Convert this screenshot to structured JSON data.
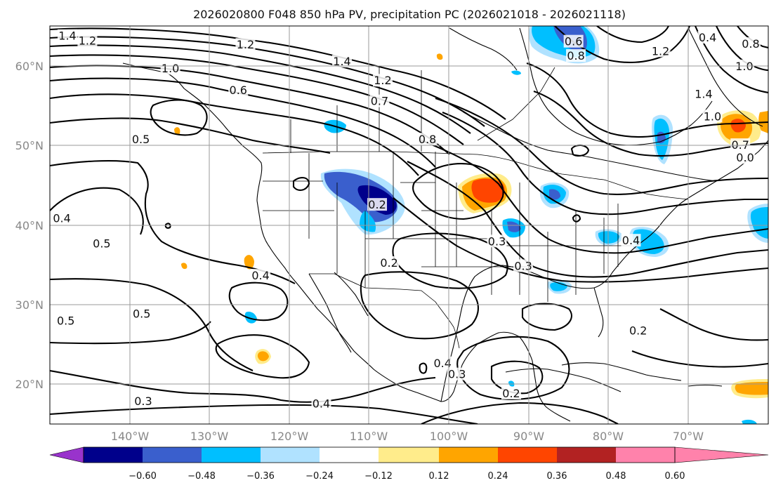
{
  "figure": {
    "title": "2026020800 F048 850 hPa PV, precipitation PC (2026021018 - 2026021118)"
  },
  "map": {
    "lon_range": [
      -150,
      -60
    ],
    "lat_range": [
      15,
      65
    ],
    "lat_labels": [
      "60°N",
      "50°N",
      "40°N",
      "30°N",
      "20°N"
    ],
    "lon_labels": [
      "140°W",
      "130°W",
      "120°W",
      "110°W",
      "100°W",
      "90°W",
      "80°W",
      "70°W"
    ]
  },
  "colorbar": {
    "ticks": [
      "−0.60",
      "−0.48",
      "−0.36",
      "−0.24",
      "−0.12",
      "0.12",
      "0.24",
      "0.36",
      "0.48",
      "0.60"
    ],
    "colors": [
      "#9933cc",
      "#00008b",
      "#3a5fcd",
      "#00bfff",
      "#b0e2ff",
      "#ffffff",
      "#ffec8b",
      "#ffa500",
      "#ff4500",
      "#b22222",
      "#ff82ab"
    ]
  },
  "chart_data": {
    "type": "contour-map",
    "title": "2026020800 F048 850 hPa PV, precipitation PC (2026021018 - 2026021118)",
    "contour_field": "850 hPa PV",
    "shaded_field": "precipitation PC",
    "contour_labels": [
      {
        "text": "1.4",
        "lon": -147.8,
        "lat": 63.7
      },
      {
        "text": "1.2",
        "lon": -145.3,
        "lat": 63.1
      },
      {
        "text": "1.2",
        "lon": -125.5,
        "lat": 62.6
      },
      {
        "text": "1.0",
        "lon": -134.9,
        "lat": 59.6
      },
      {
        "text": "0.6",
        "lon": -126.4,
        "lat": 56.9
      },
      {
        "text": "1.4",
        "lon": -113.4,
        "lat": 60.5
      },
      {
        "text": "1.2",
        "lon": -108.3,
        "lat": 58.1
      },
      {
        "text": "0.7",
        "lon": -108.7,
        "lat": 55.5
      },
      {
        "text": "0.8",
        "lon": -102.7,
        "lat": 50.7
      },
      {
        "text": "0.5",
        "lon": -138.6,
        "lat": 50.7
      },
      {
        "text": "0.4",
        "lon": -148.5,
        "lat": 40.8
      },
      {
        "text": "0.5",
        "lon": -143.5,
        "lat": 37.6
      },
      {
        "text": "0.4",
        "lon": -123.6,
        "lat": 33.6
      },
      {
        "text": "0.2",
        "lon": -107.5,
        "lat": 35.2
      },
      {
        "text": "0.2",
        "lon": -109.0,
        "lat": 42.5
      },
      {
        "text": "0.5",
        "lon": -138.5,
        "lat": 28.8
      },
      {
        "text": "0.5",
        "lon": -148.0,
        "lat": 27.9
      },
      {
        "text": "0.3",
        "lon": -138.3,
        "lat": 17.8
      },
      {
        "text": "0.4",
        "lon": -116.0,
        "lat": 17.5
      },
      {
        "text": "0.4",
        "lon": -100.8,
        "lat": 22.6
      },
      {
        "text": "0.3",
        "lon": -99.0,
        "lat": 21.2
      },
      {
        "text": "0.2",
        "lon": -92.2,
        "lat": 18.8
      },
      {
        "text": "0.3",
        "lon": -90.7,
        "lat": 34.8
      },
      {
        "text": "0.3",
        "lon": -94.0,
        "lat": 37.9
      },
      {
        "text": "0.4",
        "lon": -77.2,
        "lat": 38.0
      },
      {
        "text": "0.2",
        "lon": -76.3,
        "lat": 26.7
      },
      {
        "text": "0.6",
        "lon": -84.4,
        "lat": 63.0
      },
      {
        "text": "0.8",
        "lon": -84.1,
        "lat": 61.2
      },
      {
        "text": "1.2",
        "lon": -73.5,
        "lat": 61.8
      },
      {
        "text": "0.4",
        "lon": -67.6,
        "lat": 63.5
      },
      {
        "text": "1.4",
        "lon": -68.1,
        "lat": 56.4
      },
      {
        "text": "1.0",
        "lon": -67.0,
        "lat": 53.6
      },
      {
        "text": "0.7",
        "lon": -63.5,
        "lat": 50.0
      },
      {
        "text": "0.0",
        "lon": -62.9,
        "lat": 48.4
      },
      {
        "text": "1.0",
        "lon": -63.0,
        "lat": 59.9
      },
      {
        "text": "0.8",
        "lon": -62.2,
        "lat": 62.7
      }
    ],
    "shaded_regions": [
      {
        "category": "<= -0.48",
        "color": "#00008b",
        "lon": -108.6,
        "lat": 45.3
      },
      {
        "category": "-0.48 to -0.36",
        "color": "#3a5fcd",
        "lon": -108.5,
        "lat": 46.5
      },
      {
        "category": "0.36 to 0.48",
        "color": "#ff4500",
        "lon": -94.6,
        "lat": 43.9
      },
      {
        "category": "-0.36 to -0.24",
        "color": "#00bfff",
        "lon": -85.6,
        "lat": 62.5
      },
      {
        "category": "-0.36 to -0.24",
        "color": "#00bfff",
        "lon": -74.0,
        "lat": 50.8
      },
      {
        "category": "0.24 to 0.36",
        "color": "#ffa500",
        "lon": -64.8,
        "lat": 52.3
      },
      {
        "category": "0.24 to 0.36",
        "color": "#ffa500",
        "lon": -62.5,
        "lat": 20.6
      }
    ]
  }
}
